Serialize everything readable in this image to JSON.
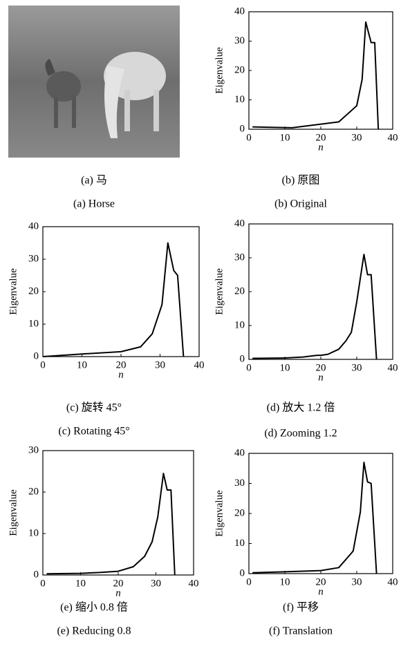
{
  "image_panel": {
    "caption_cn": "(a) 马",
    "caption_en": "(a) Horse"
  },
  "chart_data": [
    {
      "type": "line",
      "caption_cn": "(b) 原图",
      "caption_en": "(b) Original",
      "ylabel": "Eigenvalue",
      "xlabel": "n",
      "x": [
        1,
        12,
        25,
        30,
        31.5,
        32.5,
        34,
        35,
        36
      ],
      "values": [
        0.8,
        0.5,
        2.5,
        8,
        17,
        36.5,
        29.5,
        29.5,
        0
      ],
      "xlim": [
        0,
        40
      ],
      "ylim": [
        0,
        40
      ],
      "xticks": [
        0,
        10,
        20,
        30,
        40
      ],
      "yticks": [
        0,
        10,
        20,
        30,
        40
      ],
      "color": "#000000"
    },
    {
      "type": "line",
      "caption_cn": "(c) 旋转 45°",
      "caption_en": "(c) Rotating 45°",
      "ylabel": "Eigenvalue",
      "xlabel": "n",
      "x": [
        0,
        10,
        20,
        25,
        28,
        30.5,
        32,
        33.5,
        34.5,
        36
      ],
      "values": [
        0,
        0.8,
        1.5,
        3,
        7,
        16,
        35,
        26.5,
        25,
        0
      ],
      "xlim": [
        0,
        40
      ],
      "ylim": [
        0,
        40
      ],
      "xticks": [
        0,
        10,
        20,
        30,
        40
      ],
      "yticks": [
        0,
        10,
        20,
        30,
        40
      ],
      "color": "#000000"
    },
    {
      "type": "line",
      "caption_cn": "(d) 放大 1.2 倍",
      "caption_en": "(d) Zooming 1.2",
      "ylabel": "Eigenvalue",
      "xlabel": "n",
      "x": [
        1,
        10,
        15,
        19,
        20,
        22,
        25,
        27,
        28.5,
        30,
        31,
        32,
        33,
        34,
        35.5
      ],
      "values": [
        0.3,
        0.4,
        0.7,
        1.2,
        1.2,
        1.5,
        3,
        5.5,
        8,
        17,
        24,
        31,
        25,
        25,
        0
      ],
      "xlim": [
        0,
        40
      ],
      "ylim": [
        0,
        40
      ],
      "xticks": [
        0,
        10,
        20,
        30,
        40
      ],
      "yticks": [
        0,
        10,
        20,
        30,
        40
      ],
      "color": "#000000"
    },
    {
      "type": "line",
      "caption_cn": "(e) 缩小 0.8 倍",
      "caption_en": "(e) Reducing 0.8",
      "ylabel": "Eigenvalue",
      "xlabel": "n",
      "x": [
        1,
        10,
        15,
        20,
        24,
        27,
        29,
        30.5,
        32,
        33,
        34,
        35
      ],
      "values": [
        0.3,
        0.4,
        0.6,
        0.9,
        2,
        4.5,
        8,
        14,
        24.5,
        20.5,
        20.5,
        0
      ],
      "xlim": [
        0,
        40
      ],
      "ylim": [
        0,
        30
      ],
      "xticks": [
        0,
        10,
        20,
        30,
        40
      ],
      "yticks": [
        0,
        10,
        20,
        30
      ],
      "color": "#000000"
    },
    {
      "type": "line",
      "caption_cn": "(f) 平移",
      "caption_en": "(f) Translation",
      "ylabel": "Eigenvalue",
      "xlabel": "n",
      "x": [
        1,
        10,
        20,
        25,
        29,
        31,
        32,
        33,
        34,
        35.5
      ],
      "values": [
        0.3,
        0.6,
        1,
        2,
        7.5,
        20.5,
        37,
        30.5,
        30,
        0
      ],
      "xlim": [
        0,
        40
      ],
      "ylim": [
        0,
        40
      ],
      "xticks": [
        0,
        10,
        20,
        30,
        40
      ],
      "yticks": [
        0,
        10,
        20,
        30,
        40
      ],
      "color": "#000000"
    }
  ]
}
